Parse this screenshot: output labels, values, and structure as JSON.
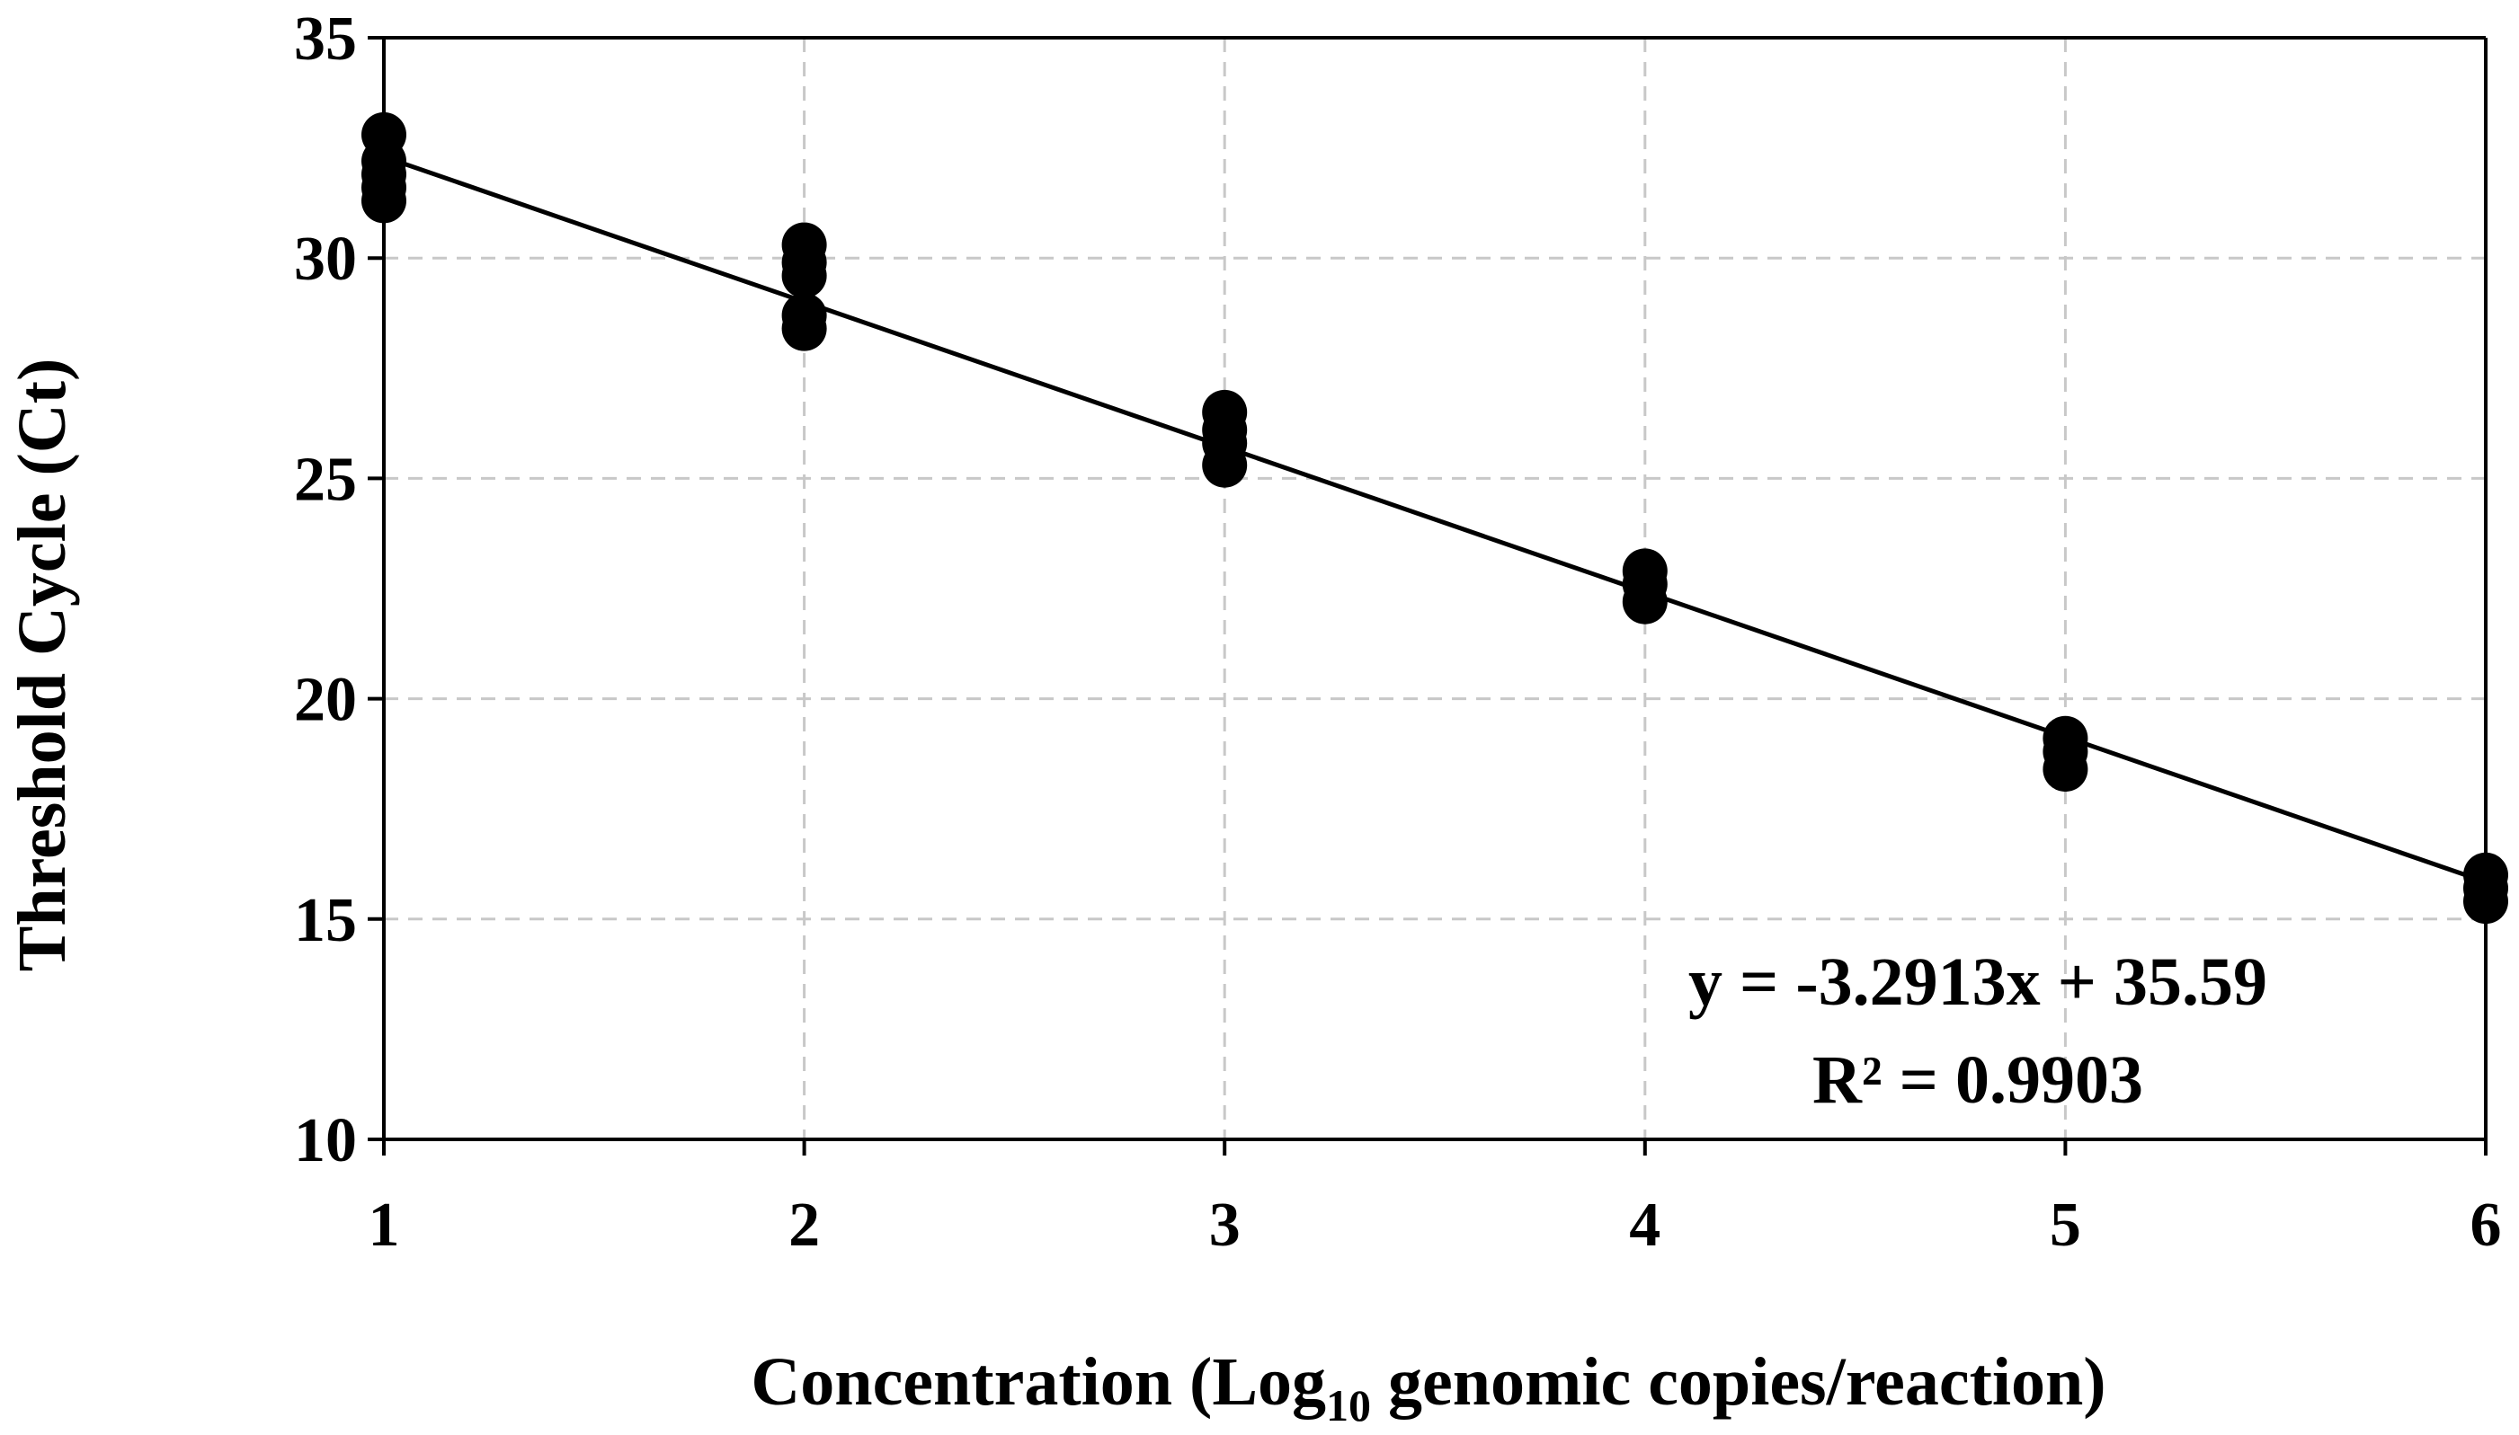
{
  "chart_data": {
    "type": "scatter",
    "xlabel": {
      "prefix": "Concentration (Log",
      "subscript": "10",
      "suffix": " genomic copies/reaction)"
    },
    "ylabel": "Threshold Cycle (Ct)",
    "xlim": [
      1,
      6
    ],
    "ylim": [
      10,
      35
    ],
    "x_ticks": [
      1,
      2,
      3,
      4,
      5,
      6
    ],
    "y_ticks": [
      10,
      15,
      20,
      25,
      30,
      35
    ],
    "grid": true,
    "points": [
      {
        "x": 1,
        "y": 32.8
      },
      {
        "x": 1,
        "y": 32.2
      },
      {
        "x": 1,
        "y": 31.9
      },
      {
        "x": 1,
        "y": 31.6
      },
      {
        "x": 1,
        "y": 31.3
      },
      {
        "x": 2,
        "y": 30.3
      },
      {
        "x": 2,
        "y": 29.9
      },
      {
        "x": 2,
        "y": 29.6
      },
      {
        "x": 2,
        "y": 28.7
      },
      {
        "x": 2,
        "y": 28.4
      },
      {
        "x": 3,
        "y": 26.5
      },
      {
        "x": 3,
        "y": 26.1
      },
      {
        "x": 3,
        "y": 25.8
      },
      {
        "x": 3,
        "y": 25.3
      },
      {
        "x": 4,
        "y": 22.9
      },
      {
        "x": 4,
        "y": 22.6
      },
      {
        "x": 4,
        "y": 22.2
      },
      {
        "x": 5,
        "y": 19.1
      },
      {
        "x": 5,
        "y": 18.8
      },
      {
        "x": 5,
        "y": 18.4
      },
      {
        "x": 6,
        "y": 16.0
      },
      {
        "x": 6,
        "y": 15.7
      },
      {
        "x": 6,
        "y": 15.4
      }
    ],
    "trendline": {
      "slope": -3.2913,
      "intercept": 35.59,
      "x_range": [
        1,
        6
      ]
    },
    "annotations": {
      "equation": "y = -3.2913x + 35.59",
      "r_squared": "R² = 0.9903"
    }
  }
}
